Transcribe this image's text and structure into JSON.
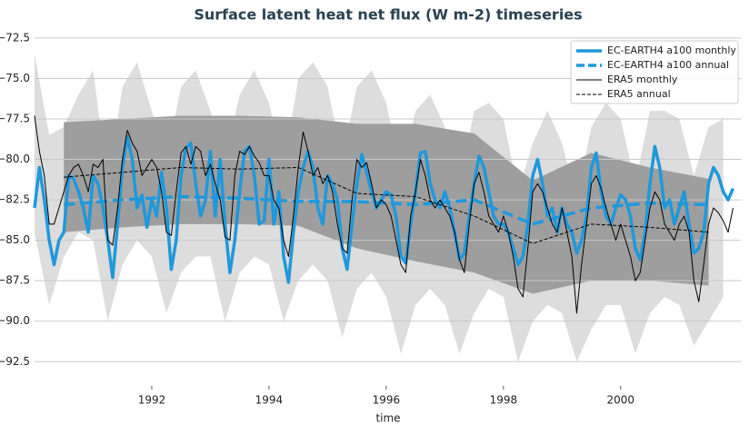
{
  "chart_data": {
    "type": "line",
    "title": "Surface latent heat net flux (W m-2) timeseries",
    "xlabel": "time",
    "xlim": [
      1990.0,
      2002.05
    ],
    "ylim": [
      -94.0,
      -71.55
    ],
    "xticks": [
      1992,
      1994,
      1996,
      1998,
      2000
    ],
    "yticks": [
      {
        "value": -72.5,
        "label": "−72.5"
      },
      {
        "value": -75.0,
        "label": "−75.0"
      },
      {
        "value": -77.5,
        "label": "−77.5"
      },
      {
        "value": -80.0,
        "label": "−80.0"
      },
      {
        "value": -82.5,
        "label": "−82.5"
      },
      {
        "value": -85.0,
        "label": "−85.0"
      },
      {
        "value": -87.5,
        "label": "−87.5"
      },
      {
        "value": -90.0,
        "label": "−90.0"
      },
      {
        "value": -92.5,
        "label": "−92.5"
      }
    ],
    "grid": true,
    "legend": "upper right",
    "x": [
      1990.0,
      1990.083,
      1990.167,
      1990.25,
      1990.333,
      1990.417,
      1990.5,
      1990.583,
      1990.667,
      1990.75,
      1990.833,
      1990.917,
      1991.0,
      1991.083,
      1991.167,
      1991.25,
      1991.333,
      1991.417,
      1991.5,
      1991.583,
      1991.667,
      1991.75,
      1991.833,
      1991.917,
      1992.0,
      1992.083,
      1992.167,
      1992.25,
      1992.333,
      1992.417,
      1992.5,
      1992.583,
      1992.667,
      1992.75,
      1992.833,
      1992.917,
      1993.0,
      1993.083,
      1993.167,
      1993.25,
      1993.333,
      1993.417,
      1993.5,
      1993.583,
      1993.667,
      1993.75,
      1993.833,
      1993.917,
      1994.0,
      1994.083,
      1994.167,
      1994.25,
      1994.333,
      1994.417,
      1994.5,
      1994.583,
      1994.667,
      1994.75,
      1994.833,
      1994.917,
      1995.0,
      1995.083,
      1995.167,
      1995.25,
      1995.333,
      1995.417,
      1995.5,
      1995.583,
      1995.667,
      1995.75,
      1995.833,
      1995.917,
      1996.0,
      1996.083,
      1996.167,
      1996.25,
      1996.333,
      1996.417,
      1996.5,
      1996.583,
      1996.667,
      1996.75,
      1996.833,
      1996.917,
      1997.0,
      1997.083,
      1997.167,
      1997.25,
      1997.333,
      1997.417,
      1997.5,
      1997.583,
      1997.667,
      1997.75,
      1997.833,
      1997.917,
      1998.0,
      1998.083,
      1998.167,
      1998.25,
      1998.333,
      1998.417,
      1998.5,
      1998.583,
      1998.667,
      1998.75,
      1998.833,
      1998.917,
      1999.0,
      1999.083,
      1999.167,
      1999.25,
      1999.333,
      1999.417,
      1999.5,
      1999.583,
      1999.667,
      1999.75,
      1999.833,
      1999.917,
      2000.0,
      2000.083,
      2000.167,
      2000.25,
      2000.333,
      2000.417,
      2000.5,
      2000.583,
      2000.667,
      2000.75,
      2000.833,
      2000.917,
      2001.0,
      2001.083,
      2001.167,
      2001.25,
      2001.333,
      2001.417,
      2001.5,
      2001.583,
      2001.667,
      2001.75,
      2001.833,
      2001.917
    ],
    "bands": [
      {
        "color": "#dddddd",
        "x": [
          1990.0,
          1990.25,
          1990.5,
          1990.75,
          1991.0,
          1991.25,
          1991.5,
          1991.75,
          1992.0,
          1992.25,
          1992.5,
          1992.75,
          1993.0,
          1993.25,
          1993.5,
          1993.75,
          1994.0,
          1994.25,
          1994.5,
          1994.75,
          1995.0,
          1995.25,
          1995.5,
          1995.75,
          1996.0,
          1996.25,
          1996.5,
          1996.75,
          1997.0,
          1997.25,
          1997.5,
          1997.75,
          1998.0,
          1998.25,
          1998.5,
          1998.75,
          1999.0,
          1999.25,
          1999.5,
          1999.75,
          2000.0,
          2000.25,
          2000.5,
          2000.75,
          2001.0,
          2001.25,
          2001.5,
          2001.75
        ],
        "upper": [
          -73.5,
          -78.5,
          -78,
          -76,
          -74.5,
          -81.5,
          -75.5,
          -74,
          -77,
          -80,
          -75.5,
          -74.5,
          -77,
          -80,
          -76,
          -74.5,
          -76.5,
          -80.5,
          -75,
          -74,
          -75.5,
          -80,
          -75.5,
          -74.5,
          -76.5,
          -81,
          -77,
          -76,
          -78,
          -81.5,
          -77,
          -76.5,
          -77.5,
          -82,
          -79,
          -77,
          -79,
          -82.5,
          -78,
          -76.5,
          -77.5,
          -81.5,
          -77,
          -77,
          -77.5,
          -81,
          -78,
          -77.5
        ],
        "lower": [
          -84.5,
          -89,
          -86,
          -84.5,
          -85,
          -90,
          -86.5,
          -85,
          -86,
          -89.5,
          -87,
          -86,
          -86,
          -90,
          -87,
          -86,
          -86.5,
          -90,
          -87.5,
          -86.5,
          -87.5,
          -91,
          -88,
          -87,
          -88.5,
          -92,
          -89,
          -88,
          -89,
          -92,
          -89.5,
          -88,
          -88.5,
          -92.5,
          -90,
          -89,
          -89.5,
          -92.5,
          -90.5,
          -89,
          -89,
          -92,
          -89.5,
          -88.5,
          -89,
          -91.5,
          -90,
          -88.5
        ]
      },
      {
        "color": "#9e9e9e",
        "x": [
          1990.5,
          1991.5,
          1992.5,
          1993.5,
          1994.5,
          1995.5,
          1996.5,
          1997.5,
          1998.5,
          1999.5,
          2000.5,
          2001.5
        ],
        "upper": [
          -77.7,
          -77.5,
          -77.3,
          -77.3,
          -77.4,
          -77.8,
          -77.8,
          -78.4,
          -81.3,
          -79.6,
          -80.5,
          -81.2
        ],
        "lower": [
          -84.5,
          -84.2,
          -84.0,
          -84.0,
          -84.1,
          -85.5,
          -86.3,
          -87.0,
          -88.3,
          -87.5,
          -87.5,
          -87.8
        ]
      }
    ],
    "series": [
      {
        "name": "EC-EARTH4 a100 monthly",
        "color": "#1f98dc",
        "linewidth": 3.5,
        "dashed": false,
        "values": [
          -83,
          -80.5,
          -82.5,
          -85,
          -86.5,
          -85,
          -84.5,
          -81,
          -81.2,
          -82,
          -83,
          -84.5,
          -81,
          -81.5,
          -83,
          -85,
          -87.3,
          -84,
          -80.5,
          -78.6,
          -80,
          -83,
          -82.2,
          -84.2,
          -82.5,
          -83.5,
          -80.8,
          -83,
          -86.8,
          -85,
          -81,
          -79.3,
          -79,
          -81.5,
          -83.5,
          -82.5,
          -79.5,
          -83.5,
          -80,
          -84,
          -87,
          -85,
          -82,
          -79.5,
          -79.2,
          -81,
          -84,
          -83.8,
          -80,
          -84,
          -82,
          -86,
          -87.6,
          -84.5,
          -82,
          -80.5,
          -79.5,
          -80.5,
          -83,
          -84,
          -81,
          -81.5,
          -82.5,
          -85.5,
          -86.8,
          -84,
          -81.5,
          -79.7,
          -80.8,
          -82,
          -83,
          -82.5,
          -82,
          -82.2,
          -83.5,
          -86,
          -86.4,
          -84,
          -82,
          -79.6,
          -79.5,
          -81.5,
          -82.5,
          -83,
          -82,
          -83,
          -84.5,
          -86.2,
          -85.8,
          -83.5,
          -81.5,
          -79.8,
          -80.5,
          -82,
          -83.5,
          -84,
          -84,
          -84.5,
          -85.5,
          -86.5,
          -86,
          -84,
          -81,
          -80,
          -81.5,
          -83.5,
          -83,
          -84.5,
          -83,
          -84,
          -84.5,
          -85.8,
          -85,
          -83.5,
          -80.5,
          -79.6,
          -82,
          -83.5,
          -84,
          -83,
          -82.2,
          -82.5,
          -83.5,
          -85.5,
          -86.2,
          -84.5,
          -81.5,
          -79.2,
          -80.5,
          -83,
          -82.5,
          -84,
          -83,
          -82,
          -84,
          -85.8,
          -85.5,
          -84.5,
          -81.5,
          -80.5,
          -81,
          -82,
          -82.5,
          -81.8
        ]
      },
      {
        "name": "EC-EARTH4 a100 annual",
        "color": "#1f98dc",
        "linewidth": 3.5,
        "dashed": true,
        "x": [
          1990.5,
          1991.5,
          1992.5,
          1993.5,
          1994.5,
          1995.5,
          1996.5,
          1997.5,
          1998.5,
          1999.5,
          2000.5,
          2001.5
        ],
        "values": [
          -82.8,
          -82.5,
          -82.3,
          -82.4,
          -82.6,
          -82.6,
          -82.8,
          -82.5,
          -84.0,
          -83.0,
          -82.7,
          -82.8
        ]
      },
      {
        "name": "ERA5 monthly",
        "color": "#000000",
        "linewidth": 1,
        "dashed": false,
        "values": [
          -77.3,
          -79.5,
          -81,
          -84,
          -84,
          -83,
          -82,
          -81,
          -80.5,
          -80.3,
          -81,
          -82,
          -80.3,
          -80.5,
          -80,
          -85,
          -85.3,
          -83,
          -80,
          -78.2,
          -79,
          -79.5,
          -81,
          -80.5,
          -80,
          -80.5,
          -82,
          -84.5,
          -84.7,
          -82,
          -79.6,
          -79.2,
          -80.3,
          -79.2,
          -79.5,
          -81,
          -80.3,
          -81.5,
          -82.5,
          -84.8,
          -85,
          -81,
          -79.5,
          -79.7,
          -79.2,
          -79.8,
          -80.2,
          -81,
          -81,
          -82.5,
          -83,
          -85,
          -86,
          -83.5,
          -80.5,
          -78.3,
          -79.5,
          -81,
          -80.5,
          -81.5,
          -81,
          -82,
          -84,
          -85.5,
          -85.8,
          -82.5,
          -80,
          -80.5,
          -80.2,
          -81.5,
          -83,
          -82.5,
          -82.8,
          -83.5,
          -85,
          -86.5,
          -87,
          -83.5,
          -82,
          -80,
          -81,
          -82.5,
          -83,
          -82.5,
          -83,
          -83.5,
          -84.5,
          -86.2,
          -87,
          -84,
          -81.5,
          -80.8,
          -82,
          -83.5,
          -84,
          -84.5,
          -83.5,
          -84.5,
          -86,
          -88,
          -88.5,
          -85.5,
          -82,
          -81.5,
          -82,
          -83,
          -84,
          -84.5,
          -83,
          -84.5,
          -86,
          -89.5,
          -86.5,
          -84,
          -81.5,
          -81,
          -81.8,
          -83,
          -84,
          -85,
          -84,
          -85,
          -86,
          -87.5,
          -87,
          -85,
          -83,
          -82,
          -82.5,
          -84,
          -84.5,
          -85,
          -84,
          -83.5,
          -84.5,
          -87.5,
          -88.8,
          -86.5,
          -84,
          -83,
          -83.3,
          -83.8,
          -84.5,
          -83
        ]
      },
      {
        "name": "ERA5 annual",
        "color": "#000000",
        "linewidth": 1,
        "dashed": true,
        "x": [
          1990.5,
          1991.5,
          1992.5,
          1993.5,
          1994.5,
          1995.5,
          1996.5,
          1997.5,
          1998.5,
          1999.5,
          2000.5,
          2001.5
        ],
        "values": [
          -81.1,
          -80.8,
          -80.5,
          -80.6,
          -80.5,
          -82.1,
          -82.3,
          -83.5,
          -85.2,
          -84.0,
          -84.2,
          -84.5
        ]
      }
    ]
  }
}
